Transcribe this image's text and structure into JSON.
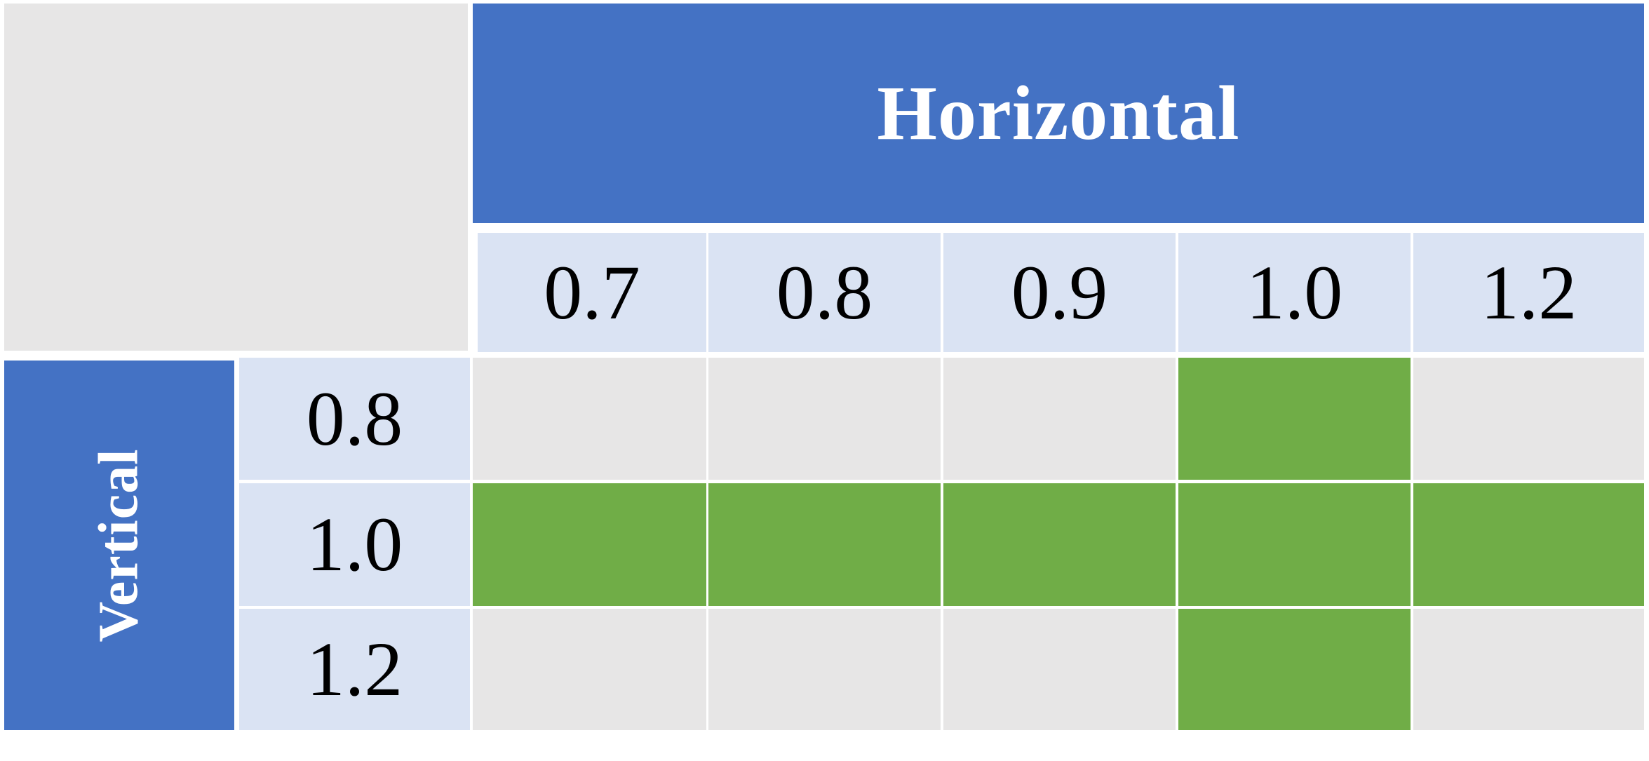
{
  "table": {
    "horizontal_label": "Horizontal",
    "vertical_label": "Vertical",
    "columns": [
      "0.7",
      "0.8",
      "0.9",
      "1.0",
      "1.2"
    ],
    "rows": [
      "0.8",
      "1.0",
      "1.2"
    ],
    "selected": [
      [
        false,
        false,
        false,
        true,
        false
      ],
      [
        true,
        true,
        true,
        true,
        true
      ],
      [
        false,
        false,
        false,
        true,
        false
      ]
    ]
  },
  "colors": {
    "header_blue": "#4472c4",
    "label_light_blue": "#dae3f3",
    "empty_gray": "#e7e6e6",
    "selected_green": "#70ad47"
  }
}
